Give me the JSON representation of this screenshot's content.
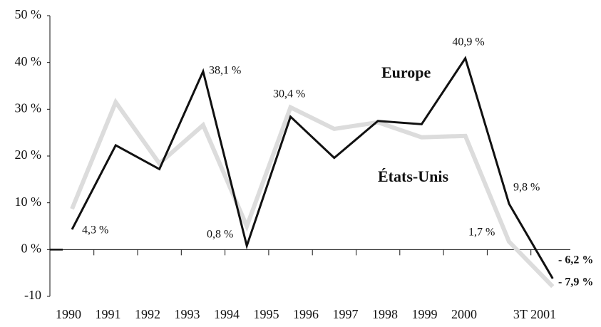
{
  "chart_data": {
    "type": "line",
    "categories": [
      "1990",
      "1991",
      "1992",
      "1993",
      "1994",
      "1995",
      "1996",
      "1997",
      "1998",
      "1999",
      "2000",
      "3T 2001"
    ],
    "series": [
      {
        "name": "Europe",
        "color": "#111111",
        "values": [
          4.3,
          22.3,
          17.2,
          38.1,
          0.8,
          28.4,
          19.6,
          27.5,
          26.8,
          40.9,
          9.8,
          -6.2
        ],
        "value_labels": [
          "4,3 %",
          null,
          null,
          "38,1 %",
          "0,8 %",
          null,
          null,
          null,
          null,
          "40,9 %",
          "9,8 %",
          "- 6,2 %"
        ]
      },
      {
        "name": "États-Unis",
        "color": "#dcdcdc",
        "values": [
          8.7,
          31.5,
          18.4,
          26.6,
          5.0,
          30.4,
          25.8,
          27.2,
          24.0,
          24.3,
          1.7,
          -7.9
        ],
        "value_labels": [
          null,
          null,
          null,
          null,
          null,
          "30,4 %",
          null,
          null,
          null,
          null,
          "1,7 %",
          "- 7,9 %"
        ]
      }
    ],
    "ylim": [
      -10,
      50
    ],
    "yticks": [
      {
        "value": -10,
        "label": "-10"
      },
      {
        "value": 0,
        "label": "0 %"
      },
      {
        "value": 10,
        "label": "10 %"
      },
      {
        "value": 20,
        "label": "20 %"
      },
      {
        "value": 30,
        "label": "30 %"
      },
      {
        "value": 40,
        "label": "40 %"
      },
      {
        "value": 50,
        "label": "50 %"
      }
    ]
  }
}
